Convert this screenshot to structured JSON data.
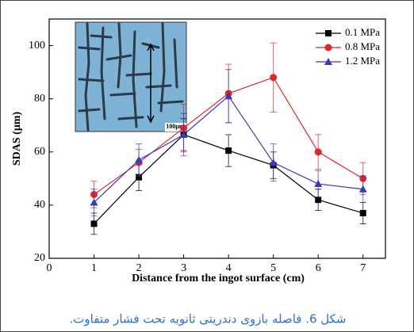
{
  "chart_data": {
    "type": "line",
    "x": [
      1,
      2,
      3,
      4,
      5,
      6,
      7
    ],
    "xlim": [
      0,
      7.5
    ],
    "xticks": [
      0,
      1,
      2,
      3,
      4,
      5,
      6,
      7
    ],
    "ylim": [
      20,
      110
    ],
    "yticks": [
      20,
      40,
      60,
      80,
      100
    ],
    "x_label": "Distance from the ingot surface (cm)",
    "y_label": "SDAS (μm)",
    "legend": "upper right",
    "inset_scale_label": "100μm",
    "series": [
      {
        "name": "0.1 MPa",
        "color": "#000000",
        "marker": "square",
        "values": [
          33,
          50.5,
          66.5,
          60.5,
          55,
          42,
          37
        ],
        "errors": [
          4,
          5,
          6,
          6,
          5,
          4,
          4
        ]
      },
      {
        "name": "0.8 MPa",
        "color": "#e0262a",
        "marker": "circle",
        "values": [
          44,
          56,
          69,
          82,
          88,
          60,
          50
        ],
        "errors": [
          5,
          5,
          9,
          11,
          13,
          6.5,
          6
        ]
      },
      {
        "name": "1.2 MPa",
        "color": "#3a3ab8",
        "marker": "triangle",
        "values": [
          41,
          57,
          66.5,
          81,
          56,
          48,
          46
        ],
        "errors": [
          5,
          6,
          8,
          10,
          7,
          5,
          5
        ]
      }
    ]
  },
  "caption": "شکل 6. فاصله بازوی دندریتی ثانویه تحت فشار متفاوت."
}
